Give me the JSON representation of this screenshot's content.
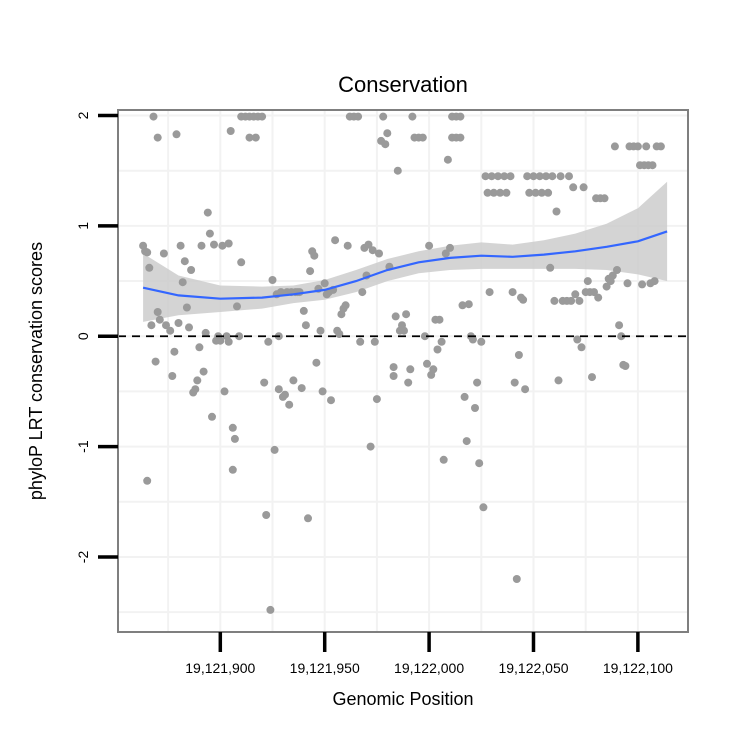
{
  "chart_data": {
    "type": "scatter",
    "title": "Conservation",
    "xlabel": "Genomic Position",
    "ylabel": "phyloP LRT conservation scores",
    "xlim": [
      19121851,
      19122124
    ],
    "ylim": [
      -2.68,
      2.05
    ],
    "x_ticks": [
      19121900,
      19121950,
      19122000,
      19122050,
      19122100
    ],
    "x_tick_labels": [
      "19,121,900",
      "19,121,950",
      "19,122,000",
      "19,122,050",
      "19,122,100"
    ],
    "y_ticks": [
      -2,
      -1,
      0,
      1,
      2
    ],
    "y_tick_labels": [
      "-2",
      "-1",
      "0",
      "1",
      "2"
    ],
    "reference_line": {
      "y": 0,
      "style": "dashed"
    },
    "smooth_line": {
      "x": [
        19121863,
        19121880,
        19121900,
        19121920,
        19121935,
        19121950,
        19121965,
        19121980,
        19121995,
        19122010,
        19122025,
        19122040,
        19122055,
        19122070,
        19122085,
        19122100,
        19122114
      ],
      "y": [
        0.44,
        0.37,
        0.34,
        0.35,
        0.38,
        0.42,
        0.5,
        0.6,
        0.67,
        0.71,
        0.73,
        0.72,
        0.74,
        0.77,
        0.81,
        0.86,
        0.95
      ],
      "ci_lower": [
        0.13,
        0.19,
        0.22,
        0.25,
        0.3,
        0.33,
        0.4,
        0.5,
        0.57,
        0.6,
        0.61,
        0.61,
        0.61,
        0.61,
        0.6,
        0.56,
        0.5
      ],
      "ci_upper": [
        0.75,
        0.55,
        0.46,
        0.45,
        0.46,
        0.51,
        0.6,
        0.7,
        0.77,
        0.82,
        0.85,
        0.83,
        0.87,
        0.93,
        1.02,
        1.16,
        1.4
      ]
    },
    "points": [
      [
        19121863,
        0.82
      ],
      [
        19121864,
        0.77
      ],
      [
        19121865,
        0.76
      ],
      [
        19121866,
        0.62
      ],
      [
        19121865,
        -1.31
      ],
      [
        19121867,
        0.1
      ],
      [
        19121869,
        -0.23
      ],
      [
        19121870,
        0.22
      ],
      [
        19121871,
        0.15
      ],
      [
        19121868,
        1.99
      ],
      [
        19121870,
        1.8
      ],
      [
        19121873,
        0.75
      ],
      [
        19121874,
        0.1
      ],
      [
        19121876,
        0.05
      ],
      [
        19121877,
        -0.36
      ],
      [
        19121878,
        -0.14
      ],
      [
        19121879,
        1.83
      ],
      [
        19121880,
        0.12
      ],
      [
        19121881,
        0.82
      ],
      [
        19121882,
        0.49
      ],
      [
        19121883,
        0.68
      ],
      [
        19121884,
        0.26
      ],
      [
        19121885,
        0.08
      ],
      [
        19121886,
        0.6
      ],
      [
        19121887,
        -0.51
      ],
      [
        19121888,
        -0.48
      ],
      [
        19121889,
        -0.4
      ],
      [
        19121890,
        -0.1
      ],
      [
        19121891,
        0.82
      ],
      [
        19121892,
        -0.32
      ],
      [
        19121893,
        0.03
      ],
      [
        19121894,
        1.12
      ],
      [
        19121895,
        0.93
      ],
      [
        19121896,
        -0.73
      ],
      [
        19121897,
        0.83
      ],
      [
        19121898,
        -0.04
      ],
      [
        19121899,
        0.0
      ],
      [
        19121900,
        -0.04
      ],
      [
        19121901,
        0.82
      ],
      [
        19121902,
        -0.5
      ],
      [
        19121903,
        0.0
      ],
      [
        19121904,
        0.84
      ],
      [
        19121904,
        -0.05
      ],
      [
        19121905,
        1.86
      ],
      [
        19121906,
        -1.21
      ],
      [
        19121906,
        -0.83
      ],
      [
        19121907,
        -0.93
      ],
      [
        19121908,
        0.27
      ],
      [
        19121909,
        0.0
      ],
      [
        19121910,
        0.67
      ],
      [
        19121910,
        1.99
      ],
      [
        19121912,
        1.99
      ],
      [
        19121914,
        1.99
      ],
      [
        19121916,
        1.99
      ],
      [
        19121918,
        1.99
      ],
      [
        19121920,
        1.99
      ],
      [
        19121914,
        1.8
      ],
      [
        19121917,
        1.8
      ],
      [
        19121921,
        -0.42
      ],
      [
        19121922,
        -1.62
      ],
      [
        19121923,
        -0.05
      ],
      [
        19121924,
        -2.48
      ],
      [
        19121925,
        0.51
      ],
      [
        19121926,
        -1.03
      ],
      [
        19121927,
        0.38
      ],
      [
        19121928,
        -0.48
      ],
      [
        19121928,
        0.0
      ],
      [
        19121929,
        0.4
      ],
      [
        19121930,
        -0.55
      ],
      [
        19121931,
        -0.53
      ],
      [
        19121932,
        0.4
      ],
      [
        19121933,
        -0.62
      ],
      [
        19121934,
        0.4
      ],
      [
        19121935,
        -0.4
      ],
      [
        19121936,
        0.4
      ],
      [
        19121937,
        0.4
      ],
      [
        19121938,
        0.4
      ],
      [
        19121939,
        -0.47
      ],
      [
        19121940,
        0.23
      ],
      [
        19121941,
        0.1
      ],
      [
        19121942,
        -1.65
      ],
      [
        19121943,
        0.59
      ],
      [
        19121944,
        0.77
      ],
      [
        19121945,
        0.73
      ],
      [
        19121946,
        -0.24
      ],
      [
        19121947,
        0.43
      ],
      [
        19121948,
        0.05
      ],
      [
        19121949,
        -0.5
      ],
      [
        19121950,
        0.48
      ],
      [
        19121951,
        0.38
      ],
      [
        19121952,
        0.4
      ],
      [
        19121953,
        -0.58
      ],
      [
        19121954,
        0.42
      ],
      [
        19121955,
        0.87
      ],
      [
        19121956,
        0.05
      ],
      [
        19121957,
        0.02
      ],
      [
        19121958,
        0.2
      ],
      [
        19121959,
        0.25
      ],
      [
        19121960,
        0.28
      ],
      [
        19121961,
        0.82
      ],
      [
        19121962,
        1.99
      ],
      [
        19121964,
        1.99
      ],
      [
        19121966,
        1.99
      ],
      [
        19121967,
        -0.05
      ],
      [
        19121968,
        0.4
      ],
      [
        19121969,
        0.8
      ],
      [
        19121970,
        0.55
      ],
      [
        19121971,
        0.83
      ],
      [
        19121972,
        -1.0
      ],
      [
        19121973,
        0.78
      ],
      [
        19121974,
        -0.05
      ],
      [
        19121975,
        -0.57
      ],
      [
        19121976,
        0.75
      ],
      [
        19121977,
        1.77
      ],
      [
        19121978,
        1.99
      ],
      [
        19121979,
        1.74
      ],
      [
        19121980,
        1.84
      ],
      [
        19121981,
        0.63
      ],
      [
        19121983,
        -0.36
      ],
      [
        19121983,
        -0.28
      ],
      [
        19121984,
        0.18
      ],
      [
        19121985,
        1.5
      ],
      [
        19121986,
        0.05
      ],
      [
        19121987,
        0.1
      ],
      [
        19121988,
        0.05
      ],
      [
        19121989,
        0.2
      ],
      [
        19121990,
        -0.42
      ],
      [
        19121991,
        -0.3
      ],
      [
        19121992,
        1.99
      ],
      [
        19121993,
        1.8
      ],
      [
        19121995,
        1.8
      ],
      [
        19121997,
        1.8
      ],
      [
        19121998,
        0.0
      ],
      [
        19121999,
        -0.25
      ],
      [
        19122000,
        0.82
      ],
      [
        19122001,
        -0.35
      ],
      [
        19122002,
        -0.3
      ],
      [
        19122003,
        0.15
      ],
      [
        19122004,
        -0.12
      ],
      [
        19122005,
        0.15
      ],
      [
        19122006,
        -0.05
      ],
      [
        19122007,
        -1.12
      ],
      [
        19122008,
        0.75
      ],
      [
        19122009,
        1.6
      ],
      [
        19122010,
        0.8
      ],
      [
        19122011,
        1.99
      ],
      [
        19122013,
        1.99
      ],
      [
        19122015,
        1.99
      ],
      [
        19122011,
        1.8
      ],
      [
        19122013,
        1.8
      ],
      [
        19122015,
        1.8
      ],
      [
        19122016,
        0.28
      ],
      [
        19122017,
        -0.55
      ],
      [
        19122018,
        -0.95
      ],
      [
        19122019,
        0.29
      ],
      [
        19122020,
        0.0
      ],
      [
        19122021,
        -0.03
      ],
      [
        19122022,
        -0.65
      ],
      [
        19122023,
        -0.42
      ],
      [
        19122024,
        -1.15
      ],
      [
        19122025,
        -0.05
      ],
      [
        19122026,
        -1.55
      ],
      [
        19122027,
        1.45
      ],
      [
        19122028,
        1.3
      ],
      [
        19122029,
        0.4
      ],
      [
        19122030,
        1.45
      ],
      [
        19122031,
        1.3
      ],
      [
        19122033,
        1.45
      ],
      [
        19122034,
        1.3
      ],
      [
        19122036,
        1.45
      ],
      [
        19122037,
        1.3
      ],
      [
        19122039,
        1.45
      ],
      [
        19122040,
        0.4
      ],
      [
        19122041,
        -0.42
      ],
      [
        19122042,
        -2.2
      ],
      [
        19122043,
        -0.17
      ],
      [
        19122044,
        0.35
      ],
      [
        19122045,
        0.33
      ],
      [
        19122046,
        -0.48
      ],
      [
        19122047,
        1.45
      ],
      [
        19122048,
        1.3
      ],
      [
        19122050,
        1.45
      ],
      [
        19122051,
        1.3
      ],
      [
        19122053,
        1.45
      ],
      [
        19122054,
        1.3
      ],
      [
        19122056,
        1.45
      ],
      [
        19122057,
        1.3
      ],
      [
        19122058,
        0.62
      ],
      [
        19122059,
        1.45
      ],
      [
        19122060,
        0.32
      ],
      [
        19122061,
        1.13
      ],
      [
        19122062,
        -0.4
      ],
      [
        19122063,
        1.45
      ],
      [
        19122064,
        0.32
      ],
      [
        19122066,
        0.32
      ],
      [
        19122067,
        1.45
      ],
      [
        19122068,
        0.32
      ],
      [
        19122069,
        1.35
      ],
      [
        19122070,
        0.38
      ],
      [
        19122071,
        -0.03
      ],
      [
        19122072,
        0.32
      ],
      [
        19122073,
        -0.1
      ],
      [
        19122074,
        1.35
      ],
      [
        19122075,
        0.4
      ],
      [
        19122076,
        0.5
      ],
      [
        19122077,
        0.4
      ],
      [
        19122078,
        -0.37
      ],
      [
        19122079,
        0.4
      ],
      [
        19122080,
        1.25
      ],
      [
        19122081,
        0.35
      ],
      [
        19122082,
        1.25
      ],
      [
        19122084,
        1.25
      ],
      [
        19122085,
        0.45
      ],
      [
        19122086,
        0.52
      ],
      [
        19122087,
        0.5
      ],
      [
        19122088,
        0.55
      ],
      [
        19122089,
        1.72
      ],
      [
        19122090,
        0.6
      ],
      [
        19122091,
        0.1
      ],
      [
        19122092,
        0.0
      ],
      [
        19122093,
        -0.26
      ],
      [
        19122094,
        -0.27
      ],
      [
        19122095,
        0.48
      ],
      [
        19122096,
        1.72
      ],
      [
        19122098,
        1.72
      ],
      [
        19122100,
        1.72
      ],
      [
        19122101,
        1.55
      ],
      [
        19122102,
        0.47
      ],
      [
        19122103,
        1.55
      ],
      [
        19122104,
        1.72
      ],
      [
        19122105,
        1.55
      ],
      [
        19122106,
        0.48
      ],
      [
        19122107,
        1.55
      ],
      [
        19122108,
        0.5
      ],
      [
        19122109,
        1.72
      ],
      [
        19122111,
        1.72
      ]
    ],
    "colors": {
      "points": "#9a9a9a",
      "smooth_line": "#3366ff",
      "ci_band": "#cccccc",
      "panel_border": "#7f7f7f",
      "grid": "#f2f2f2",
      "reference_line": "#000000"
    }
  }
}
